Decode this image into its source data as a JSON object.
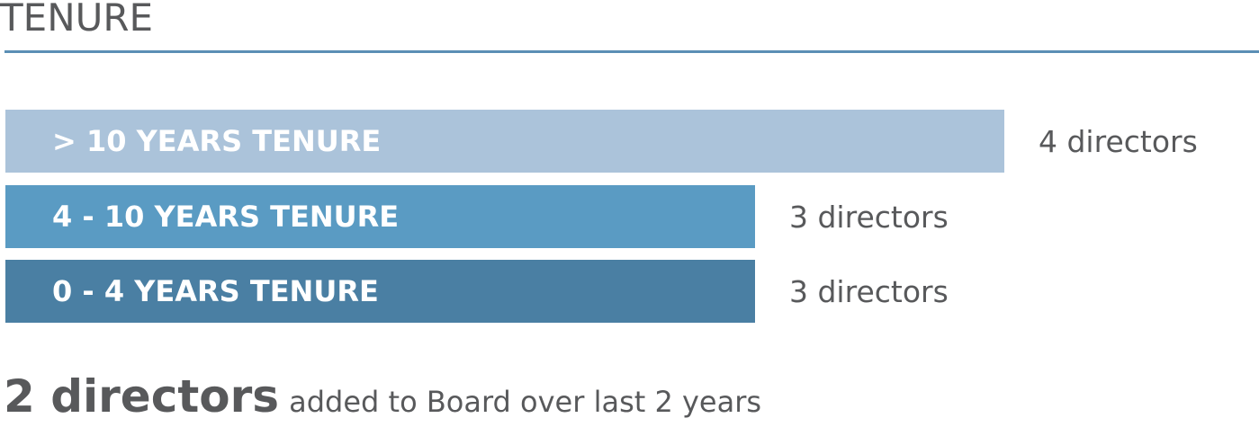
{
  "header": {
    "title": "TENURE",
    "rule_color": "#5b8fb5"
  },
  "chart_data": {
    "type": "bar",
    "orientation": "horizontal",
    "title": "TENURE",
    "categories": [
      "> 10 YEARS TENURE",
      "4 - 10 YEARS TENURE",
      "0 - 4 YEARS TENURE"
    ],
    "values": [
      4,
      3,
      3
    ],
    "value_labels": [
      "4 directors",
      "3 directors",
      "3 directors"
    ],
    "colors": [
      "#abc3da",
      "#5a9bc3",
      "#4a7fa3"
    ],
    "xlim": [
      0,
      4.8
    ],
    "grid": false,
    "legend": "none"
  },
  "footer": {
    "highlight": "2 directors",
    "text": "added to Board over last 2 years"
  }
}
